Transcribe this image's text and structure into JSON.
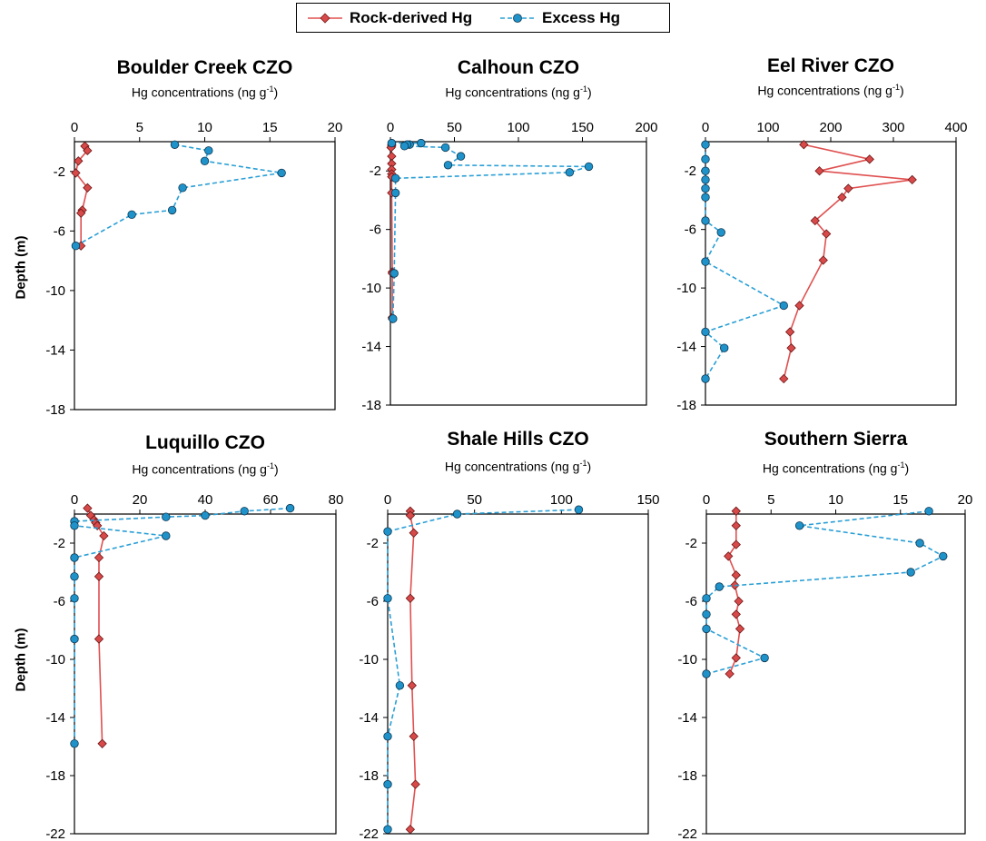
{
  "legend": {
    "rock_label": "Rock-derived Hg",
    "excess_label": "Excess Hg"
  },
  "colors": {
    "rock_line": "#e05050",
    "rock_marker": "#d84a4a",
    "excess_line": "#2a9fd6",
    "excess_marker": "#1f93c9"
  },
  "y_axis_label": "Depth (m)",
  "chart_data": [
    {
      "type": "line",
      "title": "Boulder Creek CZO",
      "subtitle_main": "Hg concentrations (ng g",
      "subtitle_sup": "-1",
      "subtitle_end": ")",
      "xlabel": "Hg concentrations (ng g-1)",
      "ylabel": "Depth (m)",
      "xlim": [
        0,
        20
      ],
      "ylim": [
        -18,
        0
      ],
      "x_ticks": [
        0,
        5,
        10,
        15,
        20
      ],
      "y_ticks": [
        -2,
        -6,
        -10,
        -14,
        -18
      ],
      "series": [
        {
          "name": "Rock-derived Hg",
          "x": [
            0.8,
            1.0,
            0.3,
            0.1,
            1.0,
            0.6,
            0.5,
            0.5
          ],
          "y": [
            -0.3,
            -0.6,
            -1.3,
            -2.1,
            -3.1,
            -4.6,
            -4.8,
            -7.0
          ]
        },
        {
          "name": "Excess Hg",
          "x": [
            7.7,
            10.3,
            10.0,
            15.9,
            8.3,
            7.5,
            4.4,
            0.1
          ],
          "y": [
            -0.2,
            -0.6,
            -1.3,
            -2.1,
            -3.1,
            -4.6,
            -4.9,
            -7.0
          ]
        }
      ]
    },
    {
      "type": "line",
      "title": "Calhoun CZO",
      "subtitle_main": "Hg concentrations (ng g",
      "subtitle_sup": "-1",
      "subtitle_end": ")",
      "xlabel": "Hg concentrations (ng g-1)",
      "ylabel": "",
      "xlim": [
        0,
        200
      ],
      "ylim": [
        -18,
        0
      ],
      "x_ticks": [
        0,
        50,
        100,
        150,
        200
      ],
      "y_ticks": [
        -2,
        -6,
        -10,
        -14,
        -18
      ],
      "series": [
        {
          "name": "Rock-derived Hg",
          "x": [
            1,
            1,
            0.5,
            1,
            1,
            1,
            1,
            1,
            1,
            1.5,
            1.5,
            1.5,
            1.5
          ],
          "y": [
            -0.2,
            -0.3,
            -0.4,
            -1.0,
            -1.5,
            -1.9,
            -2.2,
            -2.4,
            -3.5,
            -8.9,
            -9.0,
            -12.0,
            -12.1
          ]
        },
        {
          "name": "Excess Hg",
          "x": [
            1,
            24,
            15,
            13,
            11,
            43,
            55,
            45,
            155,
            140,
            4,
            4,
            3,
            2
          ],
          "y": [
            -0.1,
            -0.1,
            -0.2,
            -0.2,
            -0.3,
            -0.4,
            -1.0,
            -1.6,
            -1.7,
            -2.1,
            -2.5,
            -3.5,
            -9.0,
            -12.1
          ]
        }
      ]
    },
    {
      "type": "line",
      "title": "Eel River",
      "title2": "CZO",
      "subtitle_main": "Hg concentrations (ng g",
      "subtitle_sup": "-1",
      "subtitle_end": ")",
      "xlabel": "Hg concentrations (ng g-1)",
      "ylabel": "",
      "xlim": [
        0,
        400
      ],
      "ylim": [
        -18,
        0
      ],
      "x_ticks": [
        0,
        100,
        200,
        300,
        400
      ],
      "y_ticks": [
        -2,
        -6,
        -10,
        -14,
        -18
      ],
      "series": [
        {
          "name": "Rock-derived Hg",
          "x": [
            157,
            262,
            182,
            330,
            228,
            218,
            175,
            193,
            188,
            150,
            135,
            137,
            125
          ],
          "y": [
            -0.2,
            -1.2,
            -2.0,
            -2.6,
            -3.2,
            -3.8,
            -5.4,
            -6.3,
            -8.1,
            -11.2,
            -13.0,
            -14.1,
            -16.2
          ]
        },
        {
          "name": "Excess Hg",
          "x": [
            0,
            0,
            0,
            0,
            0,
            0,
            0,
            25,
            0,
            125,
            0,
            30,
            0
          ],
          "y": [
            -0.2,
            -1.2,
            -2.0,
            -2.6,
            -3.2,
            -3.8,
            -5.4,
            -6.2,
            -8.2,
            -11.2,
            -13.0,
            -14.1,
            -16.2
          ]
        }
      ]
    },
    {
      "type": "line",
      "title": "Luquillo CZO",
      "subtitle_main": "Hg concentrations (ng g",
      "subtitle_sup": "-1",
      "subtitle_end": ")",
      "xlabel": "Hg concentrations (ng g-1)",
      "ylabel": "Depth (m)",
      "xlim": [
        0,
        80
      ],
      "ylim": [
        -22,
        0
      ],
      "x_ticks": [
        0,
        20,
        40,
        60,
        80
      ],
      "y_ticks": [
        -2,
        -6,
        -10,
        -14,
        -18,
        -22
      ],
      "series": [
        {
          "name": "Rock-derived Hg",
          "x": [
            4,
            5,
            6,
            6.5,
            7,
            9,
            7.5,
            7.5,
            7.5,
            8.5
          ],
          "y": [
            0.4,
            -0.1,
            -0.4,
            -0.6,
            -0.8,
            -1.5,
            -3.0,
            -4.3,
            -8.6,
            -15.8
          ]
        },
        {
          "name": "Excess Hg",
          "x": [
            66,
            52,
            40,
            28,
            0,
            0,
            28,
            0,
            0,
            0,
            0,
            0
          ],
          "y": [
            0.4,
            0.2,
            -0.1,
            -0.2,
            -0.5,
            -0.8,
            -1.5,
            -3.0,
            -4.3,
            -5.8,
            -8.6,
            -15.8
          ]
        }
      ]
    },
    {
      "type": "line",
      "title": "Shale Hills CZO",
      "subtitle_main": "Hg concentrations (ng g",
      "subtitle_sup": "-1",
      "subtitle_end": ")",
      "xlabel": "Hg concentrations (ng g-1)",
      "ylabel": "",
      "xlim": [
        0,
        150
      ],
      "ylim": [
        -22,
        0
      ],
      "x_ticks": [
        0,
        50,
        100,
        150
      ],
      "y_ticks": [
        -2,
        -6,
        -10,
        -14,
        -18,
        -22
      ],
      "series": [
        {
          "name": "Rock-derived Hg",
          "x": [
            13,
            13,
            15,
            13,
            14,
            15,
            16,
            13
          ],
          "y": [
            0.2,
            -0.1,
            -1.3,
            -5.8,
            -11.8,
            -15.3,
            -18.6,
            -21.7
          ]
        },
        {
          "name": "Excess Hg",
          "x": [
            110,
            40,
            0,
            0,
            7,
            0,
            0,
            0
          ],
          "y": [
            0.3,
            0.0,
            -1.2,
            -5.8,
            -11.8,
            -15.3,
            -18.6,
            -21.7
          ]
        }
      ]
    },
    {
      "type": "line",
      "title": "Southern Sierra",
      "subtitle_main": "Hg concentrations (ng g",
      "subtitle_sup": "-1",
      "subtitle_end": ")",
      "xlabel": "Hg concentrations (ng g-1)",
      "ylabel": "",
      "xlim": [
        0,
        20
      ],
      "ylim": [
        -22,
        0
      ],
      "x_ticks": [
        0,
        5,
        10,
        15,
        20
      ],
      "y_ticks": [
        -2,
        -6,
        -10,
        -14,
        -18,
        -22
      ],
      "series": [
        {
          "name": "Rock-derived Hg",
          "x": [
            2.3,
            2.3,
            2.3,
            1.7,
            2.3,
            2.2,
            2.5,
            2.3,
            2.6,
            2.3,
            1.8
          ],
          "y": [
            0.2,
            -0.8,
            -2.1,
            -2.9,
            -4.2,
            -4.9,
            -6.0,
            -6.9,
            -7.9,
            -9.9,
            -11.0
          ]
        },
        {
          "name": "Excess Hg",
          "x": [
            17.2,
            7.2,
            16.5,
            18.3,
            15.8,
            1.0,
            0.0,
            0.0,
            0.0,
            4.5,
            0.0
          ],
          "y": [
            0.2,
            -0.8,
            -2.0,
            -2.9,
            -4.0,
            -5.0,
            -5.8,
            -6.9,
            -7.9,
            -9.9,
            -11.0
          ]
        }
      ]
    }
  ]
}
